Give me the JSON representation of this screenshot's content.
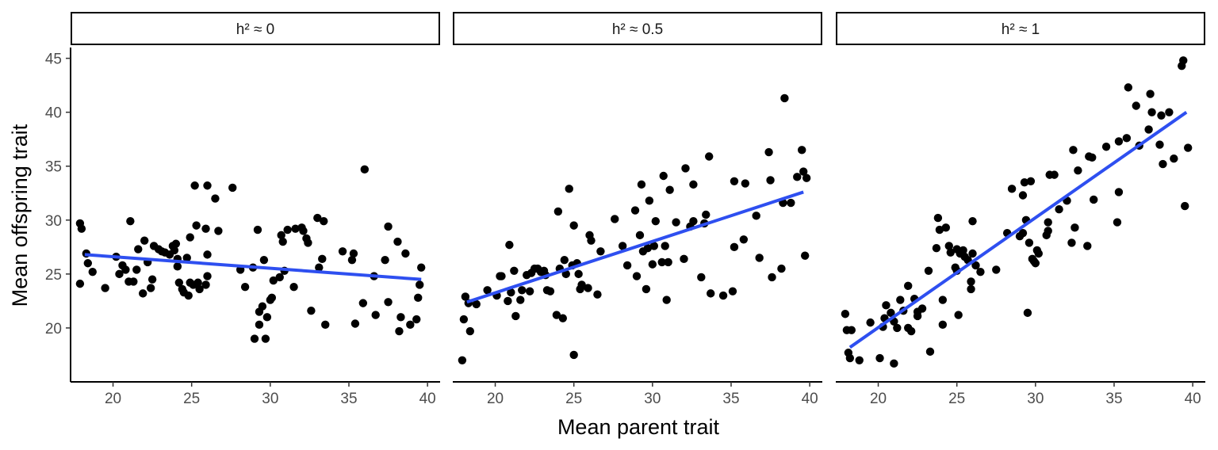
{
  "chart_data": {
    "type": "scatter",
    "xlabel": "Mean parent trait",
    "ylabel": "Mean offspring trait",
    "xlim": [
      17.3,
      40.8
    ],
    "ylim": [
      15.0,
      46.0
    ],
    "xticks": [
      "20",
      "25",
      "30",
      "35",
      "40"
    ],
    "yticks": [
      "20",
      "25",
      "30",
      "35",
      "40",
      "45"
    ],
    "point_color": "#000000",
    "line_color": "#2e4ff0",
    "grid": false,
    "panels": [
      {
        "label": "h² ≈ 0",
        "fit": {
          "x": [
            18.2,
            39.6
          ],
          "y": [
            26.8,
            24.5
          ]
        },
        "points": [
          [
            17.9,
            29.7
          ],
          [
            18.0,
            29.2
          ],
          [
            17.9,
            24.1
          ],
          [
            18.3,
            26.9
          ],
          [
            18.4,
            26.0
          ],
          [
            18.7,
            25.2
          ],
          [
            19.5,
            23.7
          ],
          [
            20.2,
            26.6
          ],
          [
            20.4,
            25.0
          ],
          [
            20.6,
            25.8
          ],
          [
            20.8,
            25.4
          ],
          [
            21.0,
            24.3
          ],
          [
            21.1,
            29.9
          ],
          [
            21.3,
            24.3
          ],
          [
            21.5,
            25.4
          ],
          [
            21.6,
            27.3
          ],
          [
            21.9,
            23.2
          ],
          [
            22.0,
            28.1
          ],
          [
            22.2,
            26.1
          ],
          [
            22.4,
            23.7
          ],
          [
            22.5,
            24.5
          ],
          [
            22.6,
            27.6
          ],
          [
            22.9,
            27.3
          ],
          [
            23.1,
            27.1
          ],
          [
            23.3,
            27.0
          ],
          [
            23.6,
            26.8
          ],
          [
            23.8,
            27.6
          ],
          [
            23.9,
            27.2
          ],
          [
            24.0,
            27.8
          ],
          [
            24.1,
            26.4
          ],
          [
            24.1,
            25.7
          ],
          [
            24.2,
            24.2
          ],
          [
            24.4,
            23.6
          ],
          [
            24.5,
            23.3
          ],
          [
            24.7,
            26.5
          ],
          [
            24.8,
            23.0
          ],
          [
            24.9,
            24.2
          ],
          [
            24.9,
            28.4
          ],
          [
            25.1,
            24.0
          ],
          [
            25.2,
            33.2
          ],
          [
            25.3,
            29.5
          ],
          [
            25.4,
            24.2
          ],
          [
            25.5,
            23.6
          ],
          [
            25.9,
            29.2
          ],
          [
            25.9,
            24.0
          ],
          [
            26.0,
            26.8
          ],
          [
            26.0,
            24.8
          ],
          [
            26.0,
            33.2
          ],
          [
            26.5,
            32.0
          ],
          [
            26.7,
            29.0
          ],
          [
            27.6,
            33.0
          ],
          [
            28.1,
            25.4
          ],
          [
            28.4,
            23.8
          ],
          [
            28.9,
            25.6
          ],
          [
            29.0,
            19.0
          ],
          [
            29.2,
            29.1
          ],
          [
            29.3,
            21.5
          ],
          [
            29.3,
            20.3
          ],
          [
            29.5,
            22.0
          ],
          [
            29.6,
            26.3
          ],
          [
            29.7,
            19.0
          ],
          [
            29.8,
            21.0
          ],
          [
            30.0,
            22.6
          ],
          [
            30.1,
            22.8
          ],
          [
            30.2,
            24.4
          ],
          [
            30.6,
            24.7
          ],
          [
            30.7,
            28.6
          ],
          [
            30.8,
            28.0
          ],
          [
            30.9,
            25.3
          ],
          [
            31.1,
            29.1
          ],
          [
            31.5,
            23.8
          ],
          [
            31.6,
            29.2
          ],
          [
            32.0,
            29.3
          ],
          [
            32.1,
            29.0
          ],
          [
            32.3,
            28.3
          ],
          [
            32.4,
            27.9
          ],
          [
            32.6,
            21.6
          ],
          [
            33.0,
            30.2
          ],
          [
            33.1,
            25.6
          ],
          [
            33.3,
            26.4
          ],
          [
            33.4,
            29.9
          ],
          [
            33.5,
            20.3
          ],
          [
            34.6,
            27.1
          ],
          [
            35.2,
            26.3
          ],
          [
            35.3,
            26.9
          ],
          [
            35.4,
            20.4
          ],
          [
            35.9,
            22.3
          ],
          [
            36.0,
            34.7
          ],
          [
            36.6,
            24.8
          ],
          [
            36.7,
            21.2
          ],
          [
            37.3,
            26.3
          ],
          [
            37.5,
            29.4
          ],
          [
            37.5,
            22.4
          ],
          [
            38.1,
            28.0
          ],
          [
            38.2,
            19.7
          ],
          [
            38.3,
            21.0
          ],
          [
            38.6,
            26.9
          ],
          [
            38.9,
            20.3
          ],
          [
            39.3,
            20.8
          ],
          [
            39.4,
            22.8
          ],
          [
            39.5,
            24.0
          ],
          [
            39.6,
            25.6
          ]
        ]
      },
      {
        "label": "h² ≈ 0.5",
        "fit": {
          "x": [
            18.2,
            39.6
          ],
          "y": [
            22.4,
            32.6
          ]
        },
        "points": [
          [
            17.9,
            17.0
          ],
          [
            18.0,
            20.8
          ],
          [
            18.1,
            22.9
          ],
          [
            18.3,
            22.3
          ],
          [
            18.4,
            19.7
          ],
          [
            18.8,
            22.2
          ],
          [
            19.5,
            23.5
          ],
          [
            20.1,
            23.0
          ],
          [
            20.3,
            24.8
          ],
          [
            20.4,
            24.8
          ],
          [
            20.8,
            22.5
          ],
          [
            20.9,
            27.7
          ],
          [
            21.0,
            23.3
          ],
          [
            21.2,
            25.3
          ],
          [
            21.3,
            21.1
          ],
          [
            21.6,
            22.6
          ],
          [
            21.7,
            23.5
          ],
          [
            22.0,
            24.9
          ],
          [
            22.2,
            23.4
          ],
          [
            22.3,
            25.1
          ],
          [
            22.5,
            25.5
          ],
          [
            22.7,
            25.5
          ],
          [
            22.9,
            25.2
          ],
          [
            23.1,
            25.3
          ],
          [
            23.2,
            24.9
          ],
          [
            23.3,
            23.5
          ],
          [
            23.5,
            23.4
          ],
          [
            23.9,
            21.2
          ],
          [
            24.0,
            30.8
          ],
          [
            24.1,
            25.5
          ],
          [
            24.3,
            20.9
          ],
          [
            24.4,
            26.3
          ],
          [
            24.5,
            25.0
          ],
          [
            24.7,
            32.9
          ],
          [
            24.9,
            25.8
          ],
          [
            25.0,
            17.5
          ],
          [
            25.0,
            29.5
          ],
          [
            25.2,
            26.0
          ],
          [
            25.3,
            25.0
          ],
          [
            25.4,
            23.6
          ],
          [
            25.5,
            24.0
          ],
          [
            25.9,
            23.7
          ],
          [
            26.0,
            28.6
          ],
          [
            26.1,
            28.1
          ],
          [
            26.5,
            23.1
          ],
          [
            26.7,
            27.1
          ],
          [
            27.6,
            30.1
          ],
          [
            28.1,
            27.6
          ],
          [
            28.4,
            25.8
          ],
          [
            28.9,
            30.9
          ],
          [
            29.0,
            24.8
          ],
          [
            29.2,
            28.6
          ],
          [
            29.3,
            33.3
          ],
          [
            29.4,
            27.1
          ],
          [
            29.6,
            23.6
          ],
          [
            29.7,
            27.4
          ],
          [
            29.8,
            31.8
          ],
          [
            30.0,
            25.9
          ],
          [
            30.1,
            27.6
          ],
          [
            30.2,
            29.9
          ],
          [
            30.6,
            26.1
          ],
          [
            30.7,
            34.1
          ],
          [
            30.8,
            27.6
          ],
          [
            30.9,
            22.6
          ],
          [
            31.0,
            26.1
          ],
          [
            31.1,
            32.8
          ],
          [
            31.5,
            29.8
          ],
          [
            32.0,
            26.4
          ],
          [
            32.1,
            34.8
          ],
          [
            32.4,
            29.4
          ],
          [
            32.6,
            29.9
          ],
          [
            32.6,
            33.3
          ],
          [
            33.1,
            24.7
          ],
          [
            33.3,
            29.7
          ],
          [
            33.4,
            30.5
          ],
          [
            33.6,
            35.9
          ],
          [
            33.7,
            23.2
          ],
          [
            34.5,
            23.0
          ],
          [
            35.1,
            23.4
          ],
          [
            35.2,
            27.5
          ],
          [
            35.2,
            33.6
          ],
          [
            35.8,
            28.2
          ],
          [
            35.9,
            33.4
          ],
          [
            36.6,
            30.4
          ],
          [
            36.8,
            26.5
          ],
          [
            37.4,
            36.3
          ],
          [
            37.5,
            33.7
          ],
          [
            37.6,
            24.7
          ],
          [
            38.2,
            25.5
          ],
          [
            38.3,
            31.6
          ],
          [
            38.4,
            41.3
          ],
          [
            38.8,
            31.6
          ],
          [
            39.2,
            34.0
          ],
          [
            39.5,
            36.5
          ],
          [
            39.6,
            34.5
          ],
          [
            39.7,
            26.7
          ],
          [
            39.8,
            33.9
          ]
        ]
      },
      {
        "label": "h² ≈ 1",
        "fit": {
          "x": [
            18.2,
            39.6
          ],
          "y": [
            18.2,
            40.0
          ]
        },
        "points": [
          [
            17.9,
            21.3
          ],
          [
            18.0,
            19.8
          ],
          [
            18.1,
            17.7
          ],
          [
            18.2,
            17.2
          ],
          [
            18.3,
            19.8
          ],
          [
            18.8,
            17.0
          ],
          [
            19.5,
            20.5
          ],
          [
            20.1,
            17.2
          ],
          [
            20.3,
            20.1
          ],
          [
            20.4,
            20.9
          ],
          [
            20.5,
            22.1
          ],
          [
            20.8,
            21.4
          ],
          [
            21.0,
            20.6
          ],
          [
            21.0,
            16.7
          ],
          [
            21.2,
            20.0
          ],
          [
            21.4,
            22.6
          ],
          [
            21.6,
            21.6
          ],
          [
            21.9,
            23.9
          ],
          [
            21.9,
            20.0
          ],
          [
            22.1,
            19.7
          ],
          [
            22.3,
            22.7
          ],
          [
            22.5,
            21.5
          ],
          [
            22.5,
            21.1
          ],
          [
            22.8,
            21.8
          ],
          [
            23.2,
            25.3
          ],
          [
            23.3,
            17.8
          ],
          [
            23.7,
            27.4
          ],
          [
            23.8,
            30.2
          ],
          [
            23.9,
            29.1
          ],
          [
            24.1,
            20.3
          ],
          [
            24.1,
            22.6
          ],
          [
            24.3,
            29.3
          ],
          [
            24.5,
            27.6
          ],
          [
            24.6,
            27.0
          ],
          [
            24.9,
            25.6
          ],
          [
            25.0,
            27.3
          ],
          [
            25.0,
            25.3
          ],
          [
            25.1,
            21.2
          ],
          [
            25.2,
            26.9
          ],
          [
            25.4,
            27.2
          ],
          [
            25.5,
            26.6
          ],
          [
            25.7,
            26.3
          ],
          [
            25.9,
            23.6
          ],
          [
            25.9,
            24.3
          ],
          [
            26.0,
            29.9
          ],
          [
            26.0,
            26.9
          ],
          [
            26.2,
            25.8
          ],
          [
            26.5,
            25.2
          ],
          [
            27.5,
            25.4
          ],
          [
            28.2,
            28.8
          ],
          [
            28.5,
            32.9
          ],
          [
            29.0,
            28.5
          ],
          [
            29.2,
            28.8
          ],
          [
            29.2,
            32.3
          ],
          [
            29.3,
            33.5
          ],
          [
            29.4,
            30.0
          ],
          [
            29.5,
            21.4
          ],
          [
            29.6,
            27.9
          ],
          [
            29.7,
            33.6
          ],
          [
            29.8,
            26.4
          ],
          [
            29.9,
            26.2
          ],
          [
            30.0,
            26.0
          ],
          [
            30.1,
            27.2
          ],
          [
            30.2,
            26.9
          ],
          [
            30.7,
            28.6
          ],
          [
            30.8,
            29.8
          ],
          [
            30.8,
            29.0
          ],
          [
            30.9,
            34.2
          ],
          [
            31.2,
            34.2
          ],
          [
            31.5,
            31.0
          ],
          [
            32.0,
            31.8
          ],
          [
            32.3,
            27.9
          ],
          [
            32.4,
            36.5
          ],
          [
            32.5,
            29.3
          ],
          [
            32.7,
            34.6
          ],
          [
            33.3,
            27.6
          ],
          [
            33.4,
            35.9
          ],
          [
            33.6,
            35.8
          ],
          [
            33.7,
            31.9
          ],
          [
            34.5,
            36.8
          ],
          [
            35.2,
            29.8
          ],
          [
            35.3,
            32.6
          ],
          [
            35.3,
            37.3
          ],
          [
            35.8,
            37.6
          ],
          [
            35.9,
            42.3
          ],
          [
            36.4,
            40.6
          ],
          [
            36.6,
            36.9
          ],
          [
            37.2,
            38.4
          ],
          [
            37.3,
            41.7
          ],
          [
            37.4,
            40.0
          ],
          [
            37.9,
            37.0
          ],
          [
            38.0,
            39.7
          ],
          [
            38.1,
            35.2
          ],
          [
            38.5,
            40.0
          ],
          [
            38.8,
            35.7
          ],
          [
            39.3,
            44.3
          ],
          [
            39.4,
            44.8
          ],
          [
            39.5,
            31.3
          ],
          [
            39.7,
            36.7
          ]
        ]
      }
    ]
  }
}
